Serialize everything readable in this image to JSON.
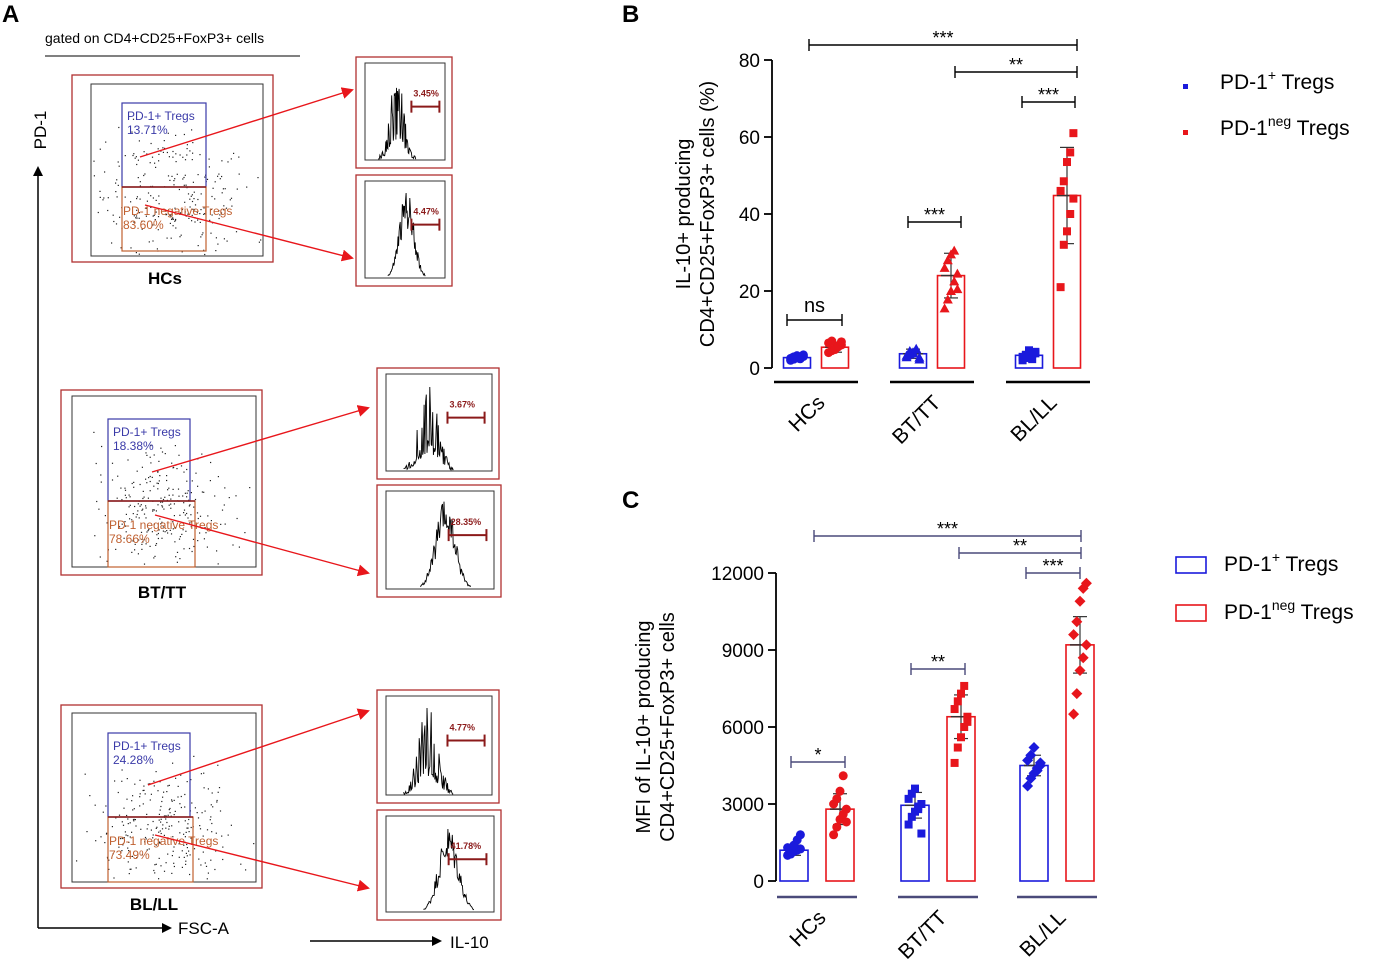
{
  "panelA": {
    "letter": "A",
    "gating_label": "gated on CD4+CD25+FoxP3+ cells",
    "y_axis": "PD-1",
    "x_axis_dot": "FSC-A",
    "x_axis_hist": "IL-10",
    "rows": [
      {
        "group": "HCs",
        "pos_label": "PD-1+ Tregs",
        "pos_pct": "13.71%",
        "neg_label": "PD-1 negative Tregs",
        "neg_pct": "83.60%",
        "hist_pos": "3.45%",
        "hist_neg": "4.47%"
      },
      {
        "group": "BT/TT",
        "pos_label": "PD-1+ Tregs",
        "pos_pct": "18.38%",
        "neg_label": "PD-1 negative Tregs",
        "neg_pct": "78.66%",
        "hist_pos": "3.67%",
        "hist_neg": "28.35%"
      },
      {
        "group": "BL/LL",
        "pos_label": "PD-1+ Tregs",
        "pos_pct": "24.28%",
        "neg_label": "PD-1 negative Tregs",
        "neg_pct": "73.49%",
        "hist_pos": "4.77%",
        "hist_neg": "41.78%"
      }
    ]
  },
  "colors": {
    "pos": "#1a1adc",
    "neg": "#e8161b",
    "dark_red": "#8b1a1a",
    "gate_pos": "#3a3aa8",
    "gate_neg": "#c06030"
  },
  "chart_data": [
    {
      "panel": "B",
      "type": "bar",
      "ylabel_line1": "IL-10+ producing",
      "ylabel_line2": "CD4+CD25+FoxP3+ cells (%)",
      "ylim": [
        0,
        80
      ],
      "yticks": [
        "0",
        "20",
        "40",
        "60",
        "80"
      ],
      "categories": [
        "HCs",
        "BT/TT",
        "BL/LL"
      ],
      "series": [
        {
          "name": "PD-1+ Tregs",
          "legend_base": "PD-1",
          "legend_sup": "+",
          "legend_tail": " Tregs",
          "means": [
            2.7,
            3.7,
            3.3
          ],
          "sd": [
            0.8,
            1.2,
            1.0
          ],
          "points": [
            [
              2.0,
              2.3,
              2.6,
              2.8,
              3.0,
              2.5,
              2.9,
              3.2,
              2.4,
              3.4
            ],
            [
              2.8,
              3.5,
              4.1,
              4.8,
              2.2,
              3.2,
              4.4,
              3.8,
              5.0,
              2.7
            ],
            [
              2.0,
              2.6,
              3.1,
              3.6,
              4.2,
              2.9,
              3.4,
              4.6,
              2.3,
              3.8
            ]
          ]
        },
        {
          "name": "PD-1neg Tregs",
          "legend_base": "PD-1",
          "legend_sup": "neg",
          "legend_tail": " Tregs",
          "means": [
            5.4,
            24.0,
            44.8
          ],
          "sd": [
            1.3,
            5.8,
            12.5
          ],
          "points": [
            [
              4.0,
              4.5,
              5.0,
              5.5,
              6.0,
              6.5,
              7.0,
              4.8,
              5.8,
              6.8
            ],
            [
              15.5,
              17.8,
              20.0,
              22.5,
              24.5,
              26.0,
              28.0,
              29.5,
              30.5,
              20.5
            ],
            [
              21.0,
              32.0,
              35.5,
              40.0,
              44.0,
              46.0,
              48.5,
              53.5,
              56.0,
              61.0
            ]
          ]
        }
      ],
      "significance": [
        {
          "label": "ns",
          "groups": "HCs"
        },
        {
          "label": "***",
          "groups": "BT/TT"
        },
        {
          "label": "***",
          "groups": "BL/LL"
        },
        {
          "label": "**",
          "groups": "BT/TT vs BL/LL"
        },
        {
          "label": "***",
          "groups": "HCs vs BL/LL"
        }
      ]
    },
    {
      "panel": "C",
      "type": "bar",
      "ylabel_line1": "MFI of IL-10+ producing",
      "ylabel_line2": "CD4+CD25+FoxP3+ cells",
      "ylim": [
        0,
        12000
      ],
      "yticks": [
        "0",
        "3000",
        "6000",
        "9000",
        "12000"
      ],
      "categories": [
        "HCs",
        "BT/TT",
        "BL/LL"
      ],
      "series": [
        {
          "name": "PD-1+ Tregs",
          "legend_base": "PD-1",
          "legend_sup": "+",
          "legend_tail": " Tregs",
          "means": [
            1200,
            2950,
            4500
          ],
          "sd": [
            200,
            500,
            400
          ],
          "points": [
            [
              1000,
              1100,
              1150,
              1200,
              1250,
              1300,
              1050,
              1400,
              1600,
              1800
            ],
            [
              2200,
              2500,
              2700,
              2900,
              3000,
              3200,
              3400,
              3600,
              2800,
              1850
            ],
            [
              3700,
              4000,
              4200,
              4400,
              4500,
              4700,
              4900,
              5200,
              4300,
              4600
            ]
          ]
        },
        {
          "name": "PD-1neg Tregs",
          "legend_base": "PD-1",
          "legend_sup": "neg",
          "legend_tail": " Tregs",
          "means": [
            2800,
            6400,
            9200
          ],
          "sd": [
            600,
            850,
            1100
          ],
          "points": [
            [
              1800,
              2100,
              2400,
              2600,
              2800,
              3000,
              3200,
              3500,
              4100,
              2300
            ],
            [
              4600,
              5200,
              5600,
              6000,
              6400,
              6700,
              7000,
              7300,
              7600,
              6200
            ],
            [
              6500,
              7300,
              8200,
              8700,
              9200,
              9600,
              10100,
              10900,
              11400,
              11600
            ]
          ]
        }
      ],
      "significance": [
        {
          "label": "*",
          "groups": "HCs"
        },
        {
          "label": "**",
          "groups": "BT/TT"
        },
        {
          "label": "***",
          "groups": "BL/LL"
        },
        {
          "label": "**",
          "groups": "BT/TT vs BL/LL"
        },
        {
          "label": "***",
          "groups": "HCs vs BL/LL"
        }
      ]
    }
  ]
}
